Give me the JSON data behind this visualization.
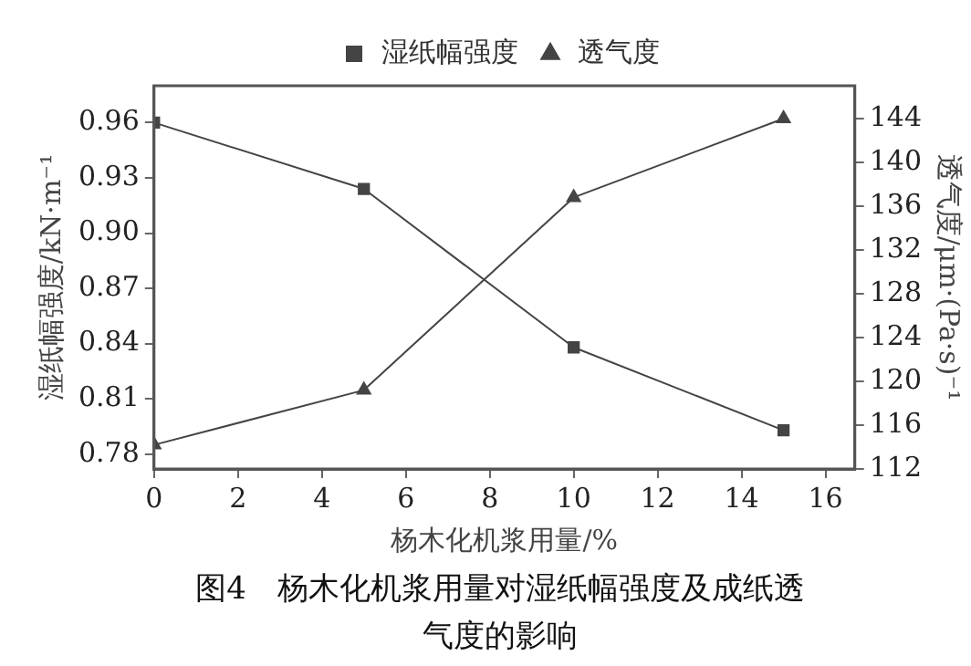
{
  "chart_data": {
    "type": "line",
    "xlabel": "杨木化机浆用量/%",
    "ylabel": "湿纸幅强度/kN·m⁻¹",
    "y2label": "透气度/μm·(Pa·s)⁻¹",
    "x": [
      0,
      5,
      10,
      15
    ],
    "series": [
      {
        "name": "湿纸幅强度",
        "color": "#444444",
        "values": [
          0.96,
          0.924,
          0.838,
          0.793
        ],
        "marker": "square"
      },
      {
        "name": "透气度",
        "color": "#444444",
        "values": [
          114.2,
          119.2,
          136.8,
          144
        ],
        "marker": "triangle",
        "axis": "y2"
      }
    ],
    "xlim": [
      0,
      16.7
    ],
    "xticks": [
      0,
      2,
      4,
      6,
      8,
      10,
      12,
      14,
      16
    ],
    "ylim": [
      0.772,
      0.98
    ],
    "yticks": [
      0.78,
      0.81,
      0.84,
      0.87,
      {
        "value": 0.9,
        "label": "0.90"
      },
      0.93,
      0.96
    ],
    "y2lim": [
      112,
      147
    ],
    "y2ticks": [
      112,
      116,
      120,
      124,
      128,
      132,
      136,
      140,
      144
    ],
    "grid": false,
    "legend": "top",
    "line_style": "solid",
    "annotations": [
      "图4　杨木化机浆用量对湿纸幅强度及成纸透气度的影响"
    ]
  }
}
